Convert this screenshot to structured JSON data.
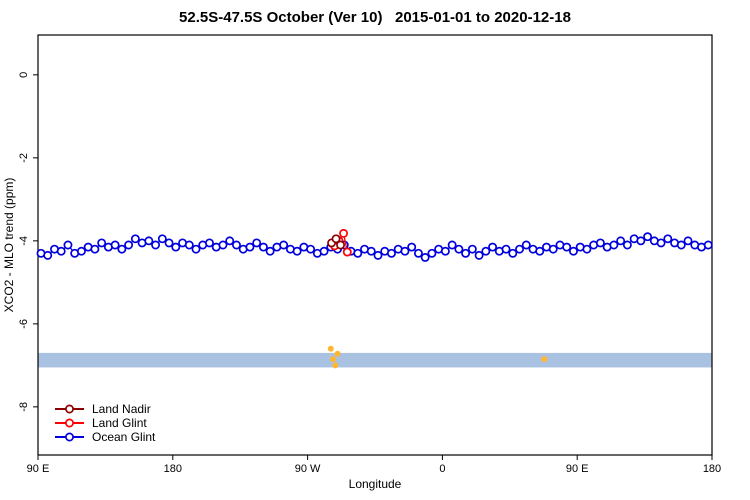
{
  "chart_data": {
    "type": "scatter",
    "title": "52.5S-47.5S October (Ver 10)   2015-01-01 to 2020-12-18",
    "xlabel": "Longitude",
    "ylabel": "XCO2 - MLO trend (ppm)",
    "xlim": [
      0,
      450
    ],
    "ylim": [
      -9.16,
      0.96
    ],
    "grid": false,
    "legend_position": "bottom-left",
    "x_ticks": [
      {
        "pos": 0,
        "label": "90 E"
      },
      {
        "pos": 90,
        "label": "180"
      },
      {
        "pos": 180,
        "label": "90 W"
      },
      {
        "pos": 270,
        "label": "0"
      },
      {
        "pos": 360,
        "label": "90 E"
      },
      {
        "pos": 450,
        "label": "180"
      }
    ],
    "y_ticks": [
      0,
      -2,
      -4,
      -6,
      -8
    ],
    "band": {
      "y_top": -6.7,
      "y_bottom": -7.05,
      "color": "#a9c2e2",
      "marks_color": "#ffb633",
      "marks": [
        {
          "x": 195.5,
          "y": -6.6
        },
        {
          "x": 197,
          "y": -6.85
        },
        {
          "x": 198.5,
          "y": -7.0
        },
        {
          "x": 200,
          "y": -6.72
        },
        {
          "x": 338,
          "y": -6.85
        }
      ]
    },
    "series": [
      {
        "name": "Land Nadir",
        "color": "#8b0000",
        "x": [
          196,
          199,
          202
        ],
        "y": [
          -4.05,
          -3.95,
          -4.1
        ]
      },
      {
        "name": "Land Glint",
        "color": "#ff0000",
        "x": [
          198,
          201,
          204,
          206.5
        ],
        "y": [
          -4.12,
          -4.0,
          -3.82,
          -4.27
        ]
      },
      {
        "name": "Ocean Glint",
        "color": "#0000dd",
        "x": [
          2,
          6.5,
          11,
          15.5,
          20,
          24.5,
          29,
          33.5,
          38,
          42.5,
          47,
          51.5,
          56,
          60.5,
          65,
          69.5,
          74,
          78.5,
          83,
          87.5,
          92,
          96.5,
          101,
          105.5,
          110,
          114.5,
          119,
          123.5,
          128,
          132.5,
          137,
          141.5,
          146,
          150.5,
          155,
          159.5,
          164,
          168.5,
          173,
          177.5,
          182,
          186.5,
          191,
          195.5,
          200,
          204.5,
          209,
          213.5,
          218,
          222.5,
          227,
          231.5,
          236,
          240.5,
          245,
          249.5,
          254,
          258.5,
          263,
          267.5,
          272,
          276.5,
          281,
          285.5,
          290,
          294.5,
          299,
          303.5,
          308,
          312.5,
          317,
          321.5,
          326,
          330.5,
          335,
          339.5,
          344,
          348.5,
          353,
          357.5,
          362,
          366.5,
          371,
          375.5,
          380,
          384.5,
          389,
          393.5,
          398,
          402.5,
          407,
          411.5,
          416,
          420.5,
          425,
          429.5,
          434,
          438.5,
          443,
          447.5
        ],
        "y": [
          -4.3,
          -4.35,
          -4.2,
          -4.25,
          -4.1,
          -4.3,
          -4.25,
          -4.15,
          -4.2,
          -4.05,
          -4.15,
          -4.1,
          -4.2,
          -4.1,
          -3.95,
          -4.05,
          -4.0,
          -4.1,
          -3.95,
          -4.05,
          -4.15,
          -4.05,
          -4.1,
          -4.2,
          -4.1,
          -4.05,
          -4.15,
          -4.1,
          -4.0,
          -4.1,
          -4.2,
          -4.15,
          -4.05,
          -4.15,
          -4.25,
          -4.15,
          -4.1,
          -4.2,
          -4.25,
          -4.15,
          -4.2,
          -4.3,
          -4.25,
          -4.15,
          -4.2,
          -4.1,
          -4.25,
          -4.3,
          -4.2,
          -4.25,
          -4.35,
          -4.25,
          -4.3,
          -4.2,
          -4.25,
          -4.15,
          -4.3,
          -4.4,
          -4.3,
          -4.2,
          -4.25,
          -4.1,
          -4.2,
          -4.3,
          -4.2,
          -4.35,
          -4.25,
          -4.15,
          -4.25,
          -4.2,
          -4.3,
          -4.2,
          -4.1,
          -4.2,
          -4.25,
          -4.15,
          -4.2,
          -4.1,
          -4.15,
          -4.25,
          -4.15,
          -4.2,
          -4.1,
          -4.05,
          -4.15,
          -4.1,
          -4.0,
          -4.1,
          -3.95,
          -4.0,
          -3.9,
          -4.0,
          -4.05,
          -3.95,
          -4.05,
          -4.1,
          -4.0,
          -4.1,
          -4.15,
          -4.1
        ]
      }
    ],
    "legend": [
      "Land Nadir",
      "Land Glint",
      "Ocean Glint"
    ]
  }
}
